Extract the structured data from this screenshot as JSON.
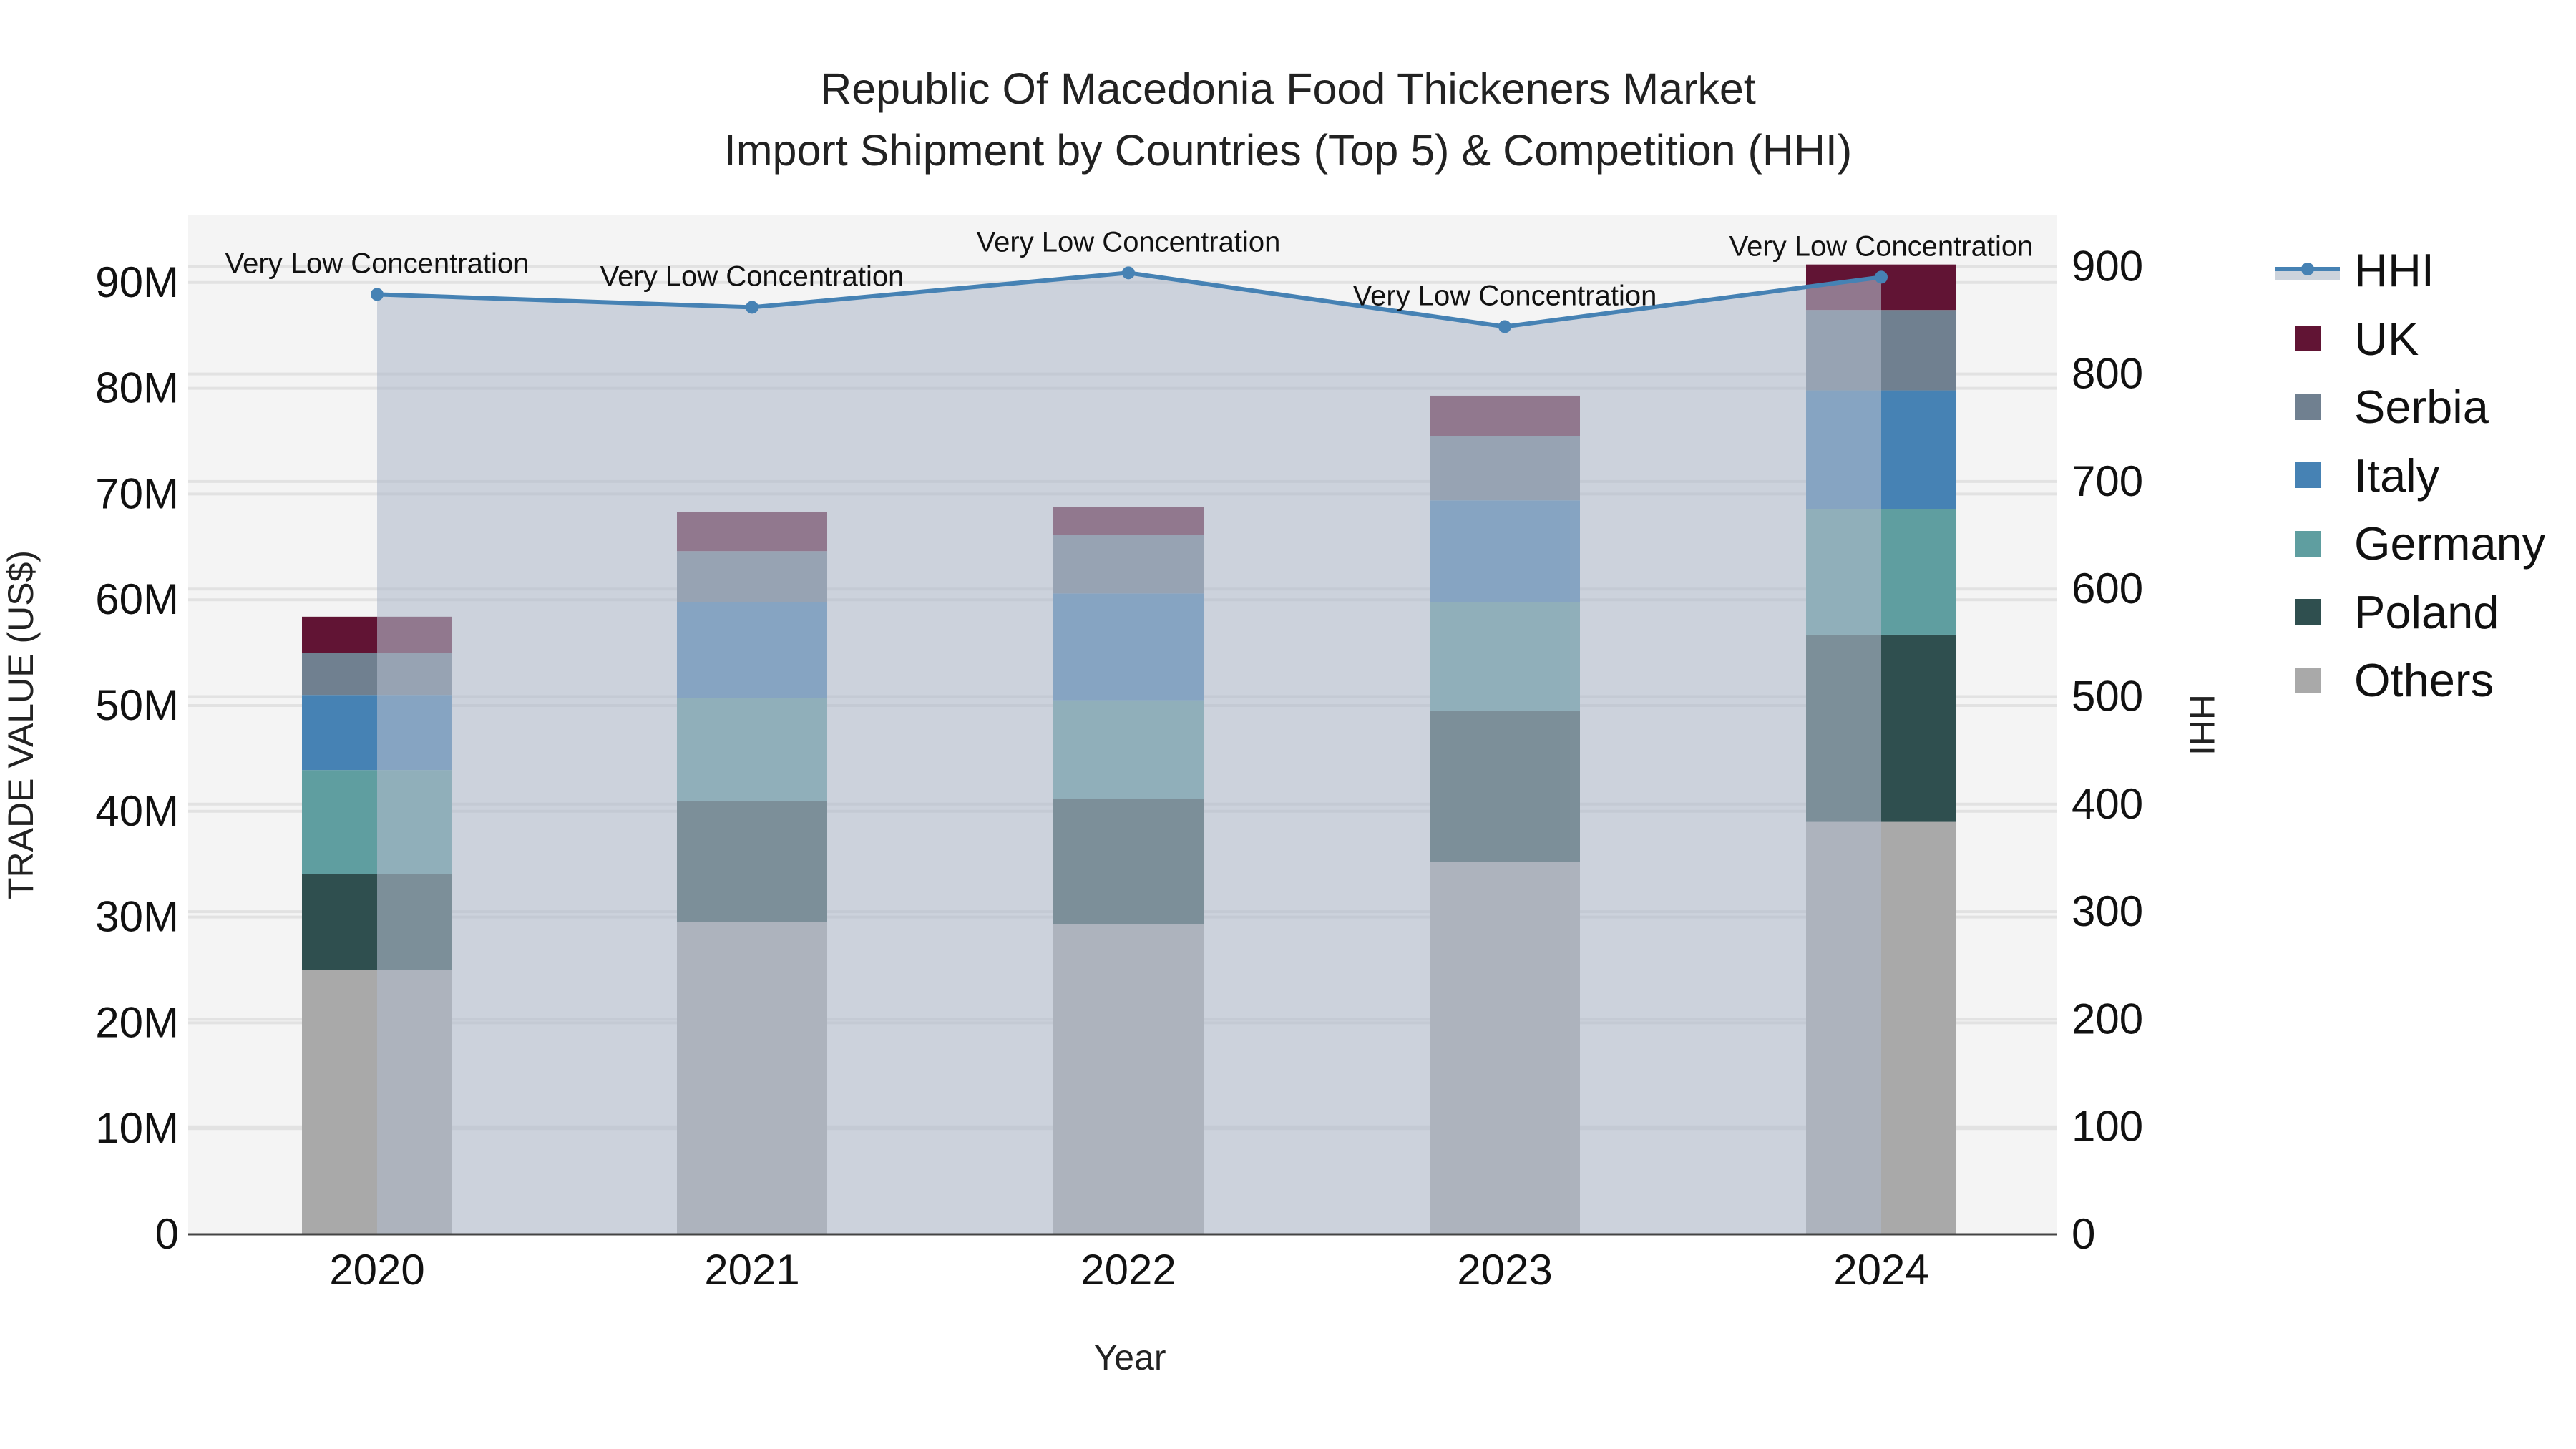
{
  "title": {
    "line1": "Republic Of Macedonia Food Thickeners Market",
    "line2": "Import Shipment by Countries (Top 5) & Competition (HHI)"
  },
  "axes": {
    "x_title": "Year",
    "y_left_title": "TRADE VALUE (US$)",
    "y_right_title": "HHI",
    "y_left_ticks": [
      "0",
      "10M",
      "20M",
      "30M",
      "40M",
      "50M",
      "60M",
      "70M",
      "80M",
      "90M"
    ],
    "y_right_ticks": [
      "0",
      "100",
      "200",
      "300",
      "400",
      "500",
      "600",
      "700",
      "800",
      "900"
    ]
  },
  "legend": [
    {
      "label": "HHI",
      "type": "line",
      "color": "#4682b4"
    },
    {
      "label": "UK",
      "type": "bar",
      "color": "#611434"
    },
    {
      "label": "Serbia",
      "type": "bar",
      "color": "#708090"
    },
    {
      "label": "Italy",
      "type": "bar",
      "color": "#4682b4"
    },
    {
      "label": "Germany",
      "type": "bar",
      "color": "#5f9ea0"
    },
    {
      "label": "Poland",
      "type": "bar",
      "color": "#2f4f4f"
    },
    {
      "label": "Others",
      "type": "bar",
      "color": "#a9a9a9"
    }
  ],
  "annotations": [
    "Very Low Concentration",
    "Very Low Concentration",
    "Very Low Concentration",
    "Very Low Concentration",
    "Very Low Concentration"
  ],
  "chart_data": {
    "type": "bar",
    "subtype": "stacked bar + line (secondary axis) with filled area",
    "title": "Republic Of Macedonia Food Thickeners Market — Import Shipment by Countries (Top 5) & Competition (HHI)",
    "xlabel": "Year",
    "ylabel": "TRADE VALUE (US$)",
    "y2label": "HHI",
    "categories": [
      "2020",
      "2021",
      "2022",
      "2023",
      "2024"
    ],
    "ylim": [
      0,
      96.4
    ],
    "y2lim": [
      0,
      948
    ],
    "units": "million US$",
    "grid": true,
    "legend_position": "right",
    "series": [
      {
        "name": "Others",
        "color": "#a9a9a9",
        "values": [
          25.0,
          29.5,
          29.3,
          35.2,
          39.0
        ]
      },
      {
        "name": "Poland",
        "color": "#2f4f4f",
        "values": [
          9.1,
          11.5,
          11.9,
          14.3,
          17.7
        ]
      },
      {
        "name": "Germany",
        "color": "#5f9ea0",
        "values": [
          9.8,
          9.7,
          9.3,
          10.3,
          11.9
        ]
      },
      {
        "name": "Italy",
        "color": "#4682b4",
        "values": [
          7.1,
          9.1,
          10.1,
          9.6,
          11.2
        ]
      },
      {
        "name": "Serbia",
        "color": "#708090",
        "values": [
          4.0,
          4.8,
          5.5,
          6.1,
          7.6
        ]
      },
      {
        "name": "UK",
        "color": "#611434",
        "values": [
          3.4,
          3.7,
          2.7,
          3.8,
          4.3
        ]
      }
    ],
    "totals": [
      58.4,
      68.3,
      68.8,
      79.3,
      91.7
    ],
    "line_series": {
      "name": "HHI",
      "axis": "right",
      "color": "#4682b4",
      "fill": "rgba(176,187,203,0.6)",
      "values": [
        874,
        862,
        894,
        844,
        890
      ],
      "labels": [
        "Very Low Concentration",
        "Very Low Concentration",
        "Very Low Concentration",
        "Very Low Concentration",
        "Very Low Concentration"
      ]
    }
  }
}
